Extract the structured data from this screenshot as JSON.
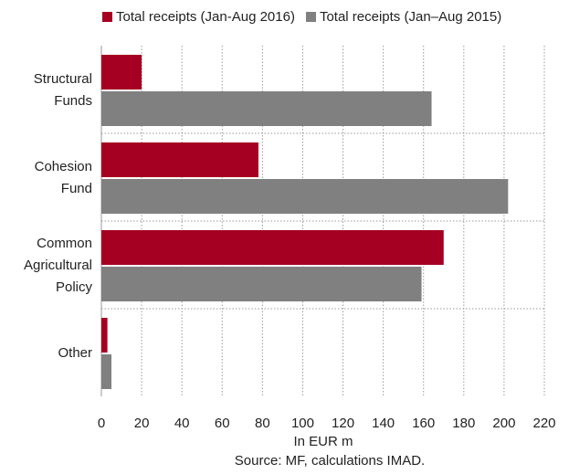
{
  "chart_data": {
    "type": "bar",
    "orientation": "horizontal",
    "categories": [
      [
        "Structural",
        "Funds"
      ],
      [
        "Cohesion",
        "Fund"
      ],
      [
        "Common",
        "Agricultural",
        "Policy"
      ],
      [
        "Other"
      ]
    ],
    "series": [
      {
        "name": "Total receipts (Jan-Aug 2016)",
        "color": "#a50021",
        "values": [
          20,
          78,
          170,
          3
        ]
      },
      {
        "name": "Total receipts (Jan–Aug 2015)",
        "color": "#808080",
        "values": [
          164,
          202,
          159,
          5
        ]
      }
    ],
    "xlim": [
      0,
      220
    ],
    "xticks": [
      0,
      20,
      40,
      60,
      80,
      100,
      120,
      140,
      160,
      180,
      200,
      220
    ],
    "xlabel": "In EUR m",
    "grid": "vertical dotted",
    "legend_position": "top"
  },
  "source": "Source: MF, calculations IMAD."
}
